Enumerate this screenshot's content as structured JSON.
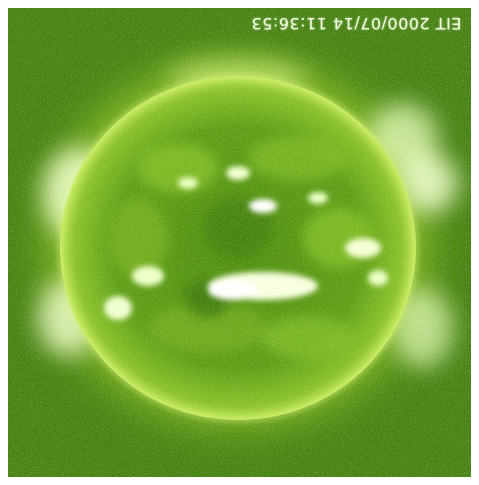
{
  "image": {
    "subject": "solar-disk",
    "overlay_text": "EIT 2000/07/14 11:36:53",
    "text_orientation": "upside-down",
    "colors": {
      "background": "#3f7a12",
      "disk_core": "#5a9a12",
      "disk_edge": "#b9e24a",
      "corona": "#d9f27a",
      "active_region": "#f7ffd8",
      "text": "#f4ffe0"
    }
  }
}
